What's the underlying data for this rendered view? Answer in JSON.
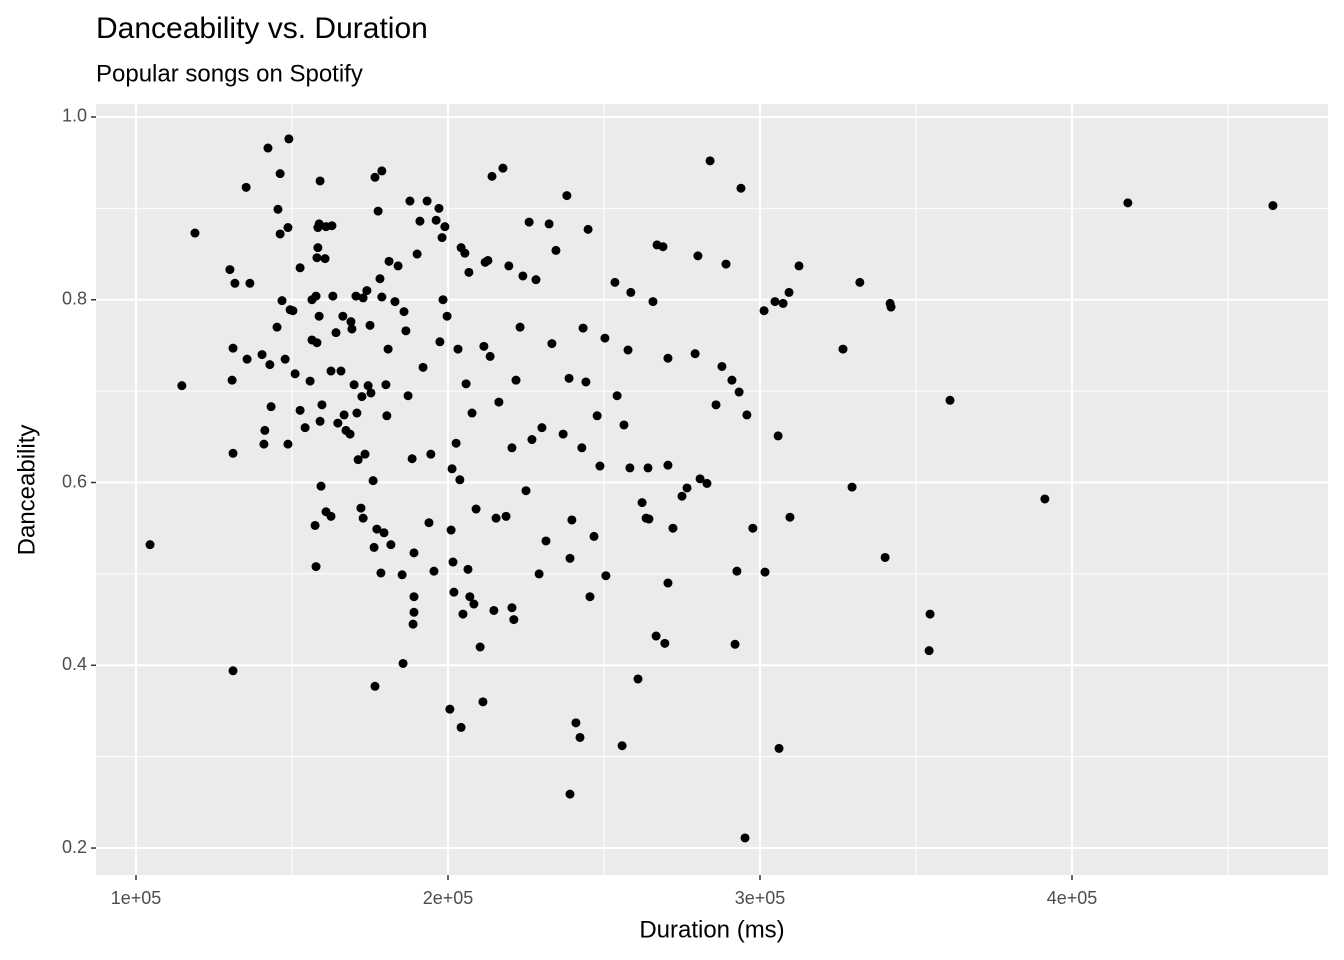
{
  "chart_data": {
    "type": "scatter",
    "title": "Danceability vs. Duration",
    "subtitle": "Popular songs on Spotify",
    "x_label": "Duration (ms)",
    "y_label": "Danceability",
    "color": "#000000",
    "grid": true,
    "xlim": [
      87180,
      482050
    ],
    "ylim": [
      0.1705,
      1.0142
    ],
    "xticks": [
      {
        "value": 100000,
        "label": "1e+05"
      },
      {
        "value": 200000,
        "label": "2e+05"
      },
      {
        "value": 300000,
        "label": "3e+05"
      },
      {
        "value": 400000,
        "label": "4e+05"
      }
    ],
    "yticks": [
      0.2,
      0.4,
      0.6,
      0.8,
      {
        "value": 1,
        "label": "1.0"
      }
    ],
    "x": [
      104500,
      114700,
      118900,
      131100,
      131100,
      130800,
      131100,
      131700,
      130100,
      135300,
      136500,
      135600,
      140400,
      141000,
      141300,
      142300,
      143300,
      142900,
      145200,
      145500,
      146200,
      146200,
      146800,
      147800,
      148700,
      149000,
      148700,
      149400,
      150300,
      151000,
      152600,
      152600,
      154200,
      155800,
      156400,
      156400,
      157400,
      157700,
      158300,
      158300,
      158700,
      159000,
      158000,
      157700,
      158700,
      158000,
      159000,
      159300,
      159600,
      160600,
      160900,
      160900,
      162500,
      162800,
      163100,
      162500,
      164100,
      164700,
      165700,
      166300,
      166700,
      167300,
      168600,
      168900,
      169200,
      169900,
      170500,
      170800,
      171200,
      172100,
      172400,
      172800,
      172800,
      173400,
      174000,
      174400,
      175000,
      175300,
      176000,
      176600,
      177200,
      177600,
      176300,
      176600,
      178200,
      178800,
      178500,
      178800,
      179500,
      180100,
      180400,
      180800,
      181100,
      181700,
      183000,
      184000,
      185300,
      185600,
      185900,
      186500,
      187200,
      187800,
      188500,
      189100,
      189100,
      189100,
      188800,
      190100,
      191000,
      192000,
      193300,
      193900,
      194500,
      195500,
      196200,
      197100,
      197400,
      198100,
      198400,
      199000,
      199700,
      200600,
      201000,
      201300,
      201600,
      201900,
      202600,
      203200,
      204200,
      203800,
      204200,
      204800,
      205400,
      205800,
      206400,
      206700,
      207000,
      207700,
      208300,
      209000,
      210300,
      211200,
      211500,
      211900,
      212800,
      213500,
      214100,
      214700,
      215400,
      216300,
      217600,
      218600,
      219500,
      220500,
      221100,
      220500,
      221800,
      223100,
      224000,
      225000,
      226000,
      226900,
      228200,
      229200,
      230100,
      231400,
      232400,
      233300,
      234600,
      236900,
      238100,
      238800,
      239100,
      239700,
      241000,
      242300,
      239100,
      242900,
      243300,
      244200,
      244900,
      245500,
      246800,
      247800,
      248700,
      250300,
      250600,
      255800,
      253500,
      254200,
      256400,
      257700,
      258600,
      258300,
      260900,
      262200,
      263500,
      264100,
      264400,
      265700,
      266700,
      267000,
      268900,
      269500,
      270500,
      270500,
      270500,
      272100,
      275000,
      276600,
      279200,
      280100,
      280800,
      283000,
      284000,
      285900,
      287800,
      289100,
      291000,
      292000,
      292600,
      293300,
      293900,
      295200,
      295800,
      297700,
      301600,
      301300,
      304800,
      305800,
      306100,
      307400,
      309300,
      309600,
      312500,
      326600,
      329500,
      332000,
      340100,
      341700,
      342000,
      354500,
      354200,
      360900,
      391300,
      417900,
      464400
    ],
    "y": [
      0.532,
      0.706,
      0.873,
      0.394,
      0.632,
      0.712,
      0.747,
      0.818,
      0.833,
      0.923,
      0.818,
      0.735,
      0.74,
      0.642,
      0.657,
      0.966,
      0.683,
      0.729,
      0.77,
      0.899,
      0.938,
      0.872,
      0.799,
      0.735,
      0.879,
      0.976,
      0.642,
      0.789,
      0.788,
      0.719,
      0.835,
      0.679,
      0.66,
      0.711,
      0.756,
      0.8,
      0.553,
      0.508,
      0.879,
      0.857,
      0.883,
      0.93,
      0.846,
      0.804,
      0.782,
      0.753,
      0.667,
      0.596,
      0.685,
      0.845,
      0.88,
      0.568,
      0.563,
      0.881,
      0.804,
      0.722,
      0.764,
      0.665,
      0.722,
      0.782,
      0.674,
      0.657,
      0.653,
      0.776,
      0.768,
      0.707,
      0.804,
      0.676,
      0.625,
      0.572,
      0.694,
      0.561,
      0.802,
      0.631,
      0.81,
      0.706,
      0.772,
      0.698,
      0.602,
      0.934,
      0.549,
      0.897,
      0.529,
      0.377,
      0.823,
      0.803,
      0.501,
      0.941,
      0.545,
      0.707,
      0.673,
      0.746,
      0.842,
      0.532,
      0.798,
      0.837,
      0.499,
      0.402,
      0.787,
      0.766,
      0.695,
      0.908,
      0.626,
      0.523,
      0.475,
      0.458,
      0.445,
      0.85,
      0.886,
      0.726,
      0.908,
      0.556,
      0.631,
      0.503,
      0.887,
      0.9,
      0.754,
      0.868,
      0.8,
      0.88,
      0.782,
      0.352,
      0.548,
      0.615,
      0.513,
      0.48,
      0.643,
      0.746,
      0.332,
      0.603,
      0.857,
      0.456,
      0.851,
      0.708,
      0.505,
      0.83,
      0.475,
      0.676,
      0.467,
      0.571,
      0.42,
      0.36,
      0.749,
      0.841,
      0.843,
      0.738,
      0.935,
      0.46,
      0.561,
      0.688,
      0.944,
      0.563,
      0.837,
      0.463,
      0.45,
      0.638,
      0.712,
      0.77,
      0.826,
      0.591,
      0.885,
      0.647,
      0.822,
      0.5,
      0.66,
      0.536,
      0.883,
      0.752,
      0.854,
      0.653,
      0.914,
      0.714,
      0.517,
      0.559,
      0.337,
      0.321,
      0.259,
      0.638,
      0.769,
      0.71,
      0.877,
      0.475,
      0.541,
      0.673,
      0.618,
      0.758,
      0.498,
      0.312,
      0.819,
      0.695,
      0.663,
      0.745,
      0.808,
      0.616,
      0.385,
      0.578,
      0.561,
      0.616,
      0.56,
      0.798,
      0.432,
      0.86,
      0.858,
      0.424,
      0.736,
      0.49,
      0.619,
      0.55,
      0.585,
      0.594,
      0.741,
      0.848,
      0.604,
      0.599,
      0.952,
      0.685,
      0.727,
      0.839,
      0.712,
      0.423,
      0.503,
      0.699,
      0.922,
      0.211,
      0.674,
      0.55,
      0.502,
      0.788,
      0.798,
      0.651,
      0.309,
      0.796,
      0.808,
      0.562,
      0.837,
      0.746,
      0.595,
      0.819,
      0.518,
      0.796,
      0.792,
      0.456,
      0.416,
      0.69,
      0.582,
      0.906,
      0.903
    ]
  }
}
